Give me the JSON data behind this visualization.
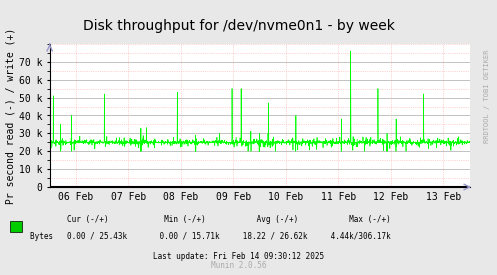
{
  "title": "Disk throughput for /dev/nvme0n1 - by week",
  "ylabel": "Pr second read (-) / write (+)",
  "xlabel_dates": [
    "06 Feb",
    "07 Feb",
    "08 Feb",
    "09 Feb",
    "10 Feb",
    "11 Feb",
    "12 Feb",
    "13 Feb"
  ],
  "yticks": [
    0,
    10000,
    20000,
    30000,
    40000,
    50000,
    60000,
    70000
  ],
  "ytick_labels": [
    "0",
    "10 k",
    "20 k",
    "30 k",
    "40 k",
    "50 k",
    "60 k",
    "70 k"
  ],
  "ylim": [
    0,
    80000
  ],
  "line_color": "#00FF00",
  "background_color": "#FFFFFF",
  "plot_bg_color": "#FFFFFF",
  "grid_color_major": "#AAAAAA",
  "grid_color_minor": "#FFAAAA",
  "legend_label": "Bytes",
  "legend_color": "#00CC00",
  "stats_text": "        Cur (-/+)          Min (-/+)          Avg (-/+)          Max (-/+)\nBytes   0.00 / 25.43k     0.00 / 15.71k    18.22 / 26.62k    4.44k/306.17k",
  "last_update": "Last update: Fri Feb 14 09:30:12 2025",
  "munin_version": "Munin 2.0.56",
  "rrdtool_text": "RRDTOOL / TOBI OETIKER",
  "arrow_color": "#9999CC",
  "top_arrow_color": "#9999CC"
}
